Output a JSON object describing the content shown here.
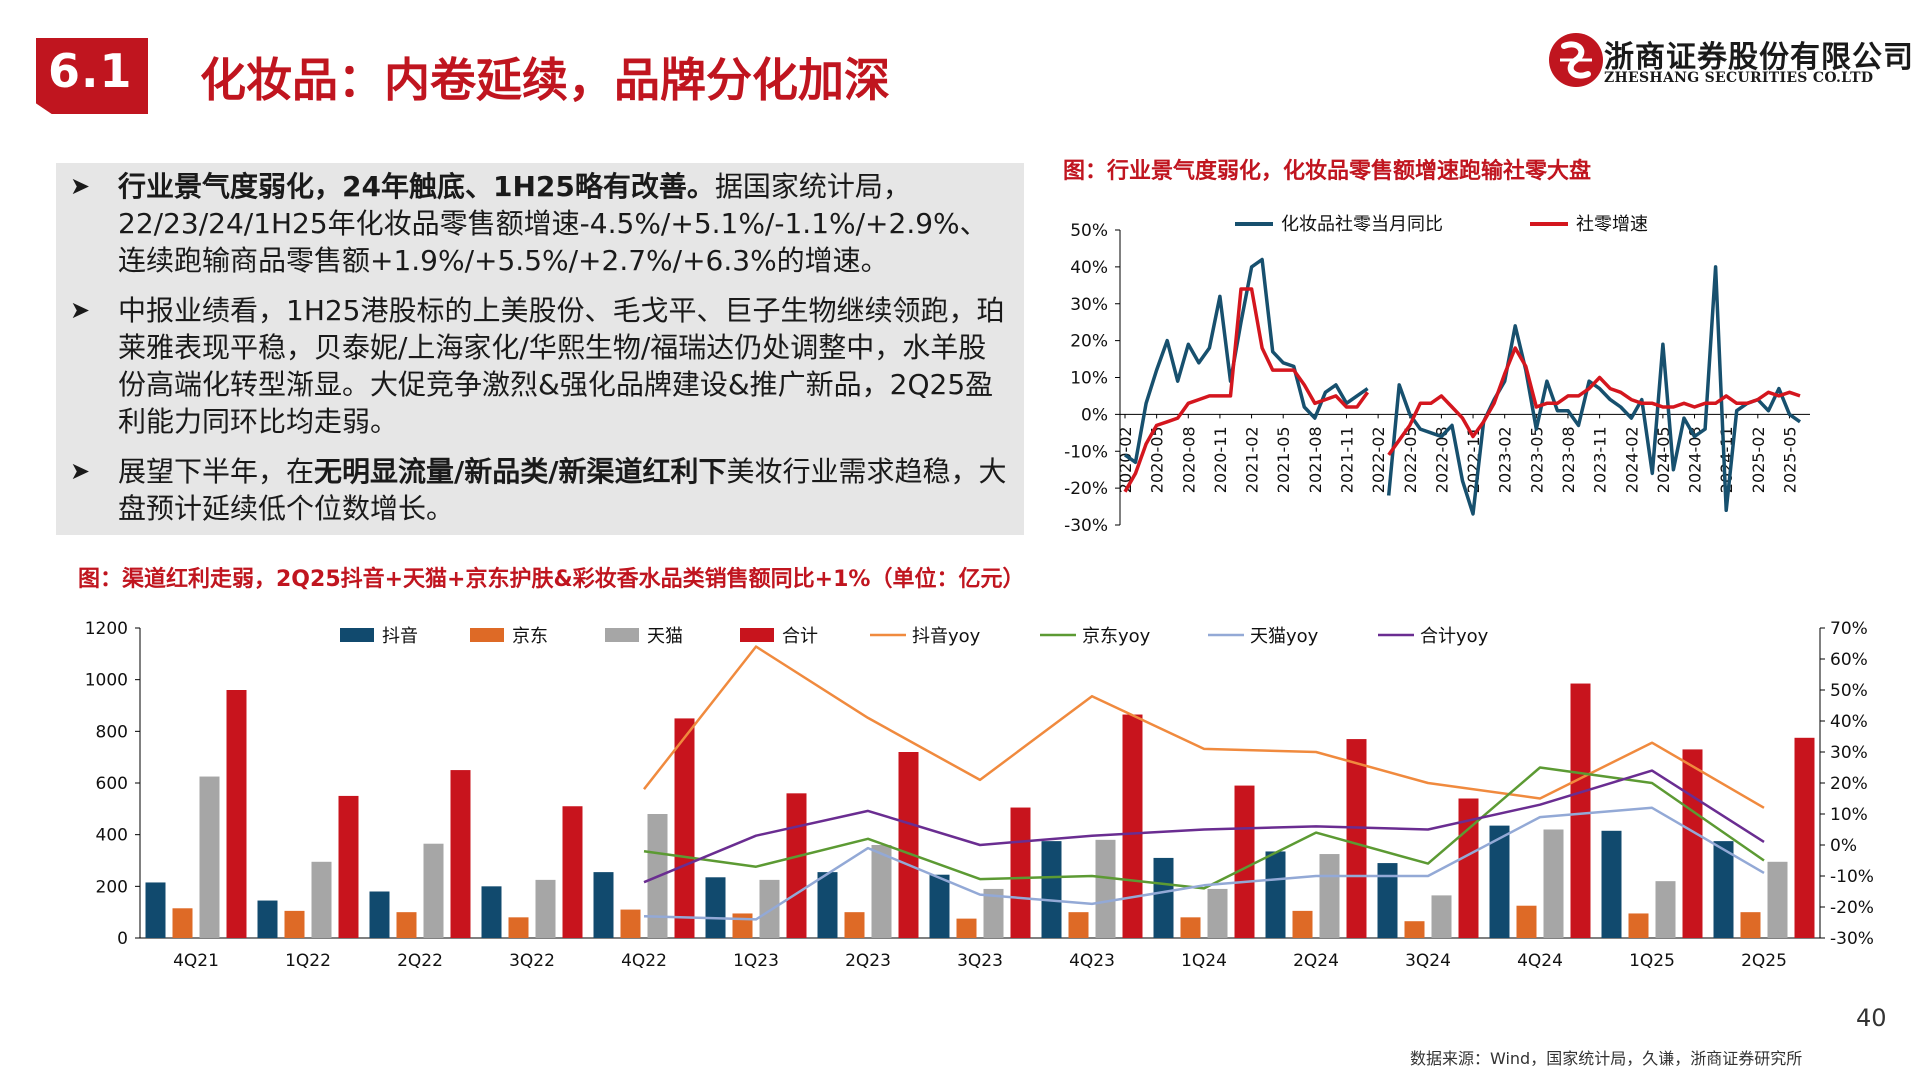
{
  "header": {
    "section_number": "6.1",
    "title": "化妆品：内卷延续，品牌分化加深",
    "logo_cn": "浙商证券股份有限公司",
    "logo_en": "ZHESHANG SECURITIES CO.LTD"
  },
  "bullets": [
    {
      "bold": "行业景气度弱化，24年触底、1H25略有改善。",
      "text": "据国家统计局，22/23/24/1H25年化妆品零售额增速-4.5%/+5.1%/-1.1%/+2.9%、连续跑输商品零售额+1.9%/+5.5%/+2.7%/+6.3%的增速。"
    },
    {
      "bold": "",
      "text": "中报业绩看，1H25港股标的上美股份、毛戈平、巨子生物继续领跑，珀莱雅表现平稳，贝泰妮/上海家化/华熙生物/福瑞达仍处调整中，水羊股份高端化转型渐显。大促竞争激烈&强化品牌建设&推广新品，2Q25盈利能力同环比均走弱。"
    },
    {
      "pre": "展望下半年，在",
      "bold": "无明显流量/新品类/新渠道红利下",
      "text": "美妆行业需求趋稳，大盘预计延续低个位数增长。"
    }
  ],
  "figure1_title": "图：行业景气度弱化，化妆品零售额增速跑输社零大盘",
  "figure2_title": "图：渠道红利走弱，2Q25抖音+天猫+京东护肤&彩妆香水品类销售额同比+1%（单位：亿元）",
  "page_number": "40",
  "source": "数据来源：Wind，国家统计局，久谦，浙商证券研究所",
  "colors": {
    "brand_red": "#c0151f",
    "cosmetics_line": "#17506e",
    "retail_line": "#d4161e",
    "douyin": "#114a6e",
    "jd": "#de6a26",
    "tmall": "#a6a6a6",
    "total": "#c8141d",
    "douyin_yoy": "#f08a3e",
    "jd_yoy": "#5c9a33",
    "tmall_yoy": "#93a9d6",
    "total_yoy": "#6a2d91"
  },
  "chart_data": [
    {
      "type": "line",
      "title": "图：行业景气度弱化，化妆品零售额增速跑输社零大盘",
      "x": [
        "2020-02",
        "2020-03",
        "2020-04",
        "2020-05",
        "2020-06",
        "2020-07",
        "2020-08",
        "2020-09",
        "2020-10",
        "2020-11",
        "2020-12",
        "2021-01",
        "2021-02",
        "2021-03",
        "2021-04",
        "2021-05",
        "2021-06",
        "2021-07",
        "2021-08",
        "2021-09",
        "2021-10",
        "2021-11",
        "2021-12",
        "2022-01",
        "2022-02",
        "2022-03",
        "2022-04",
        "2022-05",
        "2022-06",
        "2022-07",
        "2022-08",
        "2022-09",
        "2022-10",
        "2022-11",
        "2022-12",
        "2023-01",
        "2023-02",
        "2023-03",
        "2023-04",
        "2023-05",
        "2023-06",
        "2023-07",
        "2023-08",
        "2023-09",
        "2023-10",
        "2023-11",
        "2023-12",
        "2024-01",
        "2024-02",
        "2024-03",
        "2024-04",
        "2024-05",
        "2024-06",
        "2024-07",
        "2024-08",
        "2024-09",
        "2024-10",
        "2024-11",
        "2024-12",
        "2025-01",
        "2025-02",
        "2025-03",
        "2025-04",
        "2025-05",
        "2025-06"
      ],
      "x_tick_labels": [
        "2020-02",
        "2020-05",
        "2020-08",
        "2020-11",
        "2021-02",
        "2021-05",
        "2021-08",
        "2021-11",
        "2022-02",
        "2022-05",
        "2022-08",
        "2022-11",
        "2023-02",
        "2023-05",
        "2023-08",
        "2023-11",
        "2024-02",
        "2024-05",
        "2024-08",
        "2024-11",
        "2025-02",
        "2025-05"
      ],
      "series": [
        {
          "name": "化妆品社零当月同比",
          "values": [
            -11,
            -13,
            3,
            12,
            20,
            9,
            19,
            14,
            18,
            32,
            9,
            25,
            40,
            42,
            17,
            14,
            13,
            2,
            -1,
            6,
            8,
            3,
            5,
            7,
            null,
            -22,
            8,
            0,
            -4,
            -5,
            -6,
            -3,
            -18,
            -27,
            -2,
            4,
            9,
            24,
            12,
            -4,
            9,
            1,
            1,
            -3,
            9,
            7,
            4,
            2,
            -1,
            4,
            -16,
            19,
            -15,
            -1,
            -6,
            -4,
            40,
            -26,
            1,
            3,
            4,
            1,
            7,
            0,
            -2
          ]
        },
        {
          "name": "社零增速",
          "values": [
            -21,
            -16,
            -8,
            -3,
            -2,
            -1,
            3,
            4,
            5,
            5,
            5,
            34,
            34,
            18,
            12,
            12,
            12,
            8,
            3,
            4,
            5,
            2,
            2,
            6,
            null,
            -11,
            -7,
            -3,
            3,
            3,
            5,
            2,
            -1,
            -6,
            -2,
            3,
            11,
            18,
            13,
            2,
            3,
            3,
            5,
            5,
            7,
            10,
            7,
            6,
            4,
            3,
            3,
            2,
            2,
            3,
            2,
            3,
            3,
            5,
            3,
            3,
            4,
            6,
            5,
            6,
            5
          ]
        }
      ],
      "ylim": [
        -30,
        50
      ],
      "y_ticks": [
        "-30%",
        "-20%",
        "-10%",
        "0%",
        "10%",
        "20%",
        "30%",
        "40%",
        "50%"
      ],
      "legend": "top"
    },
    {
      "type": "bar",
      "title": "图：渠道红利走弱，2Q25抖音+天猫+京东护肤&彩妆香水品类销售额同比+1%（单位：亿元）",
      "categories": [
        "4Q21",
        "1Q22",
        "2Q22",
        "3Q22",
        "4Q22",
        "1Q23",
        "2Q23",
        "3Q23",
        "4Q23",
        "1Q24",
        "2Q24",
        "3Q24",
        "4Q24",
        "1Q25",
        "2Q25"
      ],
      "series": [
        {
          "name": "抖音",
          "type": "bar",
          "values": [
            215,
            145,
            180,
            200,
            255,
            235,
            255,
            245,
            375,
            310,
            335,
            290,
            435,
            415,
            375
          ]
        },
        {
          "name": "京东",
          "type": "bar",
          "values": [
            115,
            105,
            100,
            80,
            110,
            95,
            100,
            75,
            100,
            80,
            105,
            65,
            125,
            95,
            100
          ]
        },
        {
          "name": "天猫",
          "type": "bar",
          "values": [
            625,
            295,
            365,
            225,
            480,
            225,
            360,
            190,
            380,
            190,
            325,
            165,
            420,
            220,
            295
          ]
        },
        {
          "name": "合计",
          "type": "bar",
          "values": [
            960,
            550,
            650,
            510,
            850,
            560,
            720,
            505,
            865,
            590,
            770,
            540,
            985,
            730,
            775
          ]
        },
        {
          "name": "抖音yoy",
          "type": "line",
          "axis": "right",
          "values": [
            null,
            null,
            null,
            null,
            18,
            64,
            41,
            21,
            48,
            31,
            30,
            20,
            15,
            33,
            12
          ]
        },
        {
          "name": "京东yoy",
          "type": "line",
          "axis": "right",
          "values": [
            null,
            null,
            null,
            null,
            -2,
            -7,
            2,
            -11,
            -10,
            -14,
            4,
            -6,
            25,
            20,
            -5
          ]
        },
        {
          "name": "天猫yoy",
          "type": "line",
          "axis": "right",
          "values": [
            null,
            null,
            null,
            null,
            -23,
            -24,
            -1,
            -16,
            -19,
            -13,
            -10,
            -10,
            9,
            12,
            -9
          ]
        },
        {
          "name": "合计yoy",
          "type": "line",
          "axis": "right",
          "values": [
            null,
            null,
            null,
            null,
            -12,
            3,
            11,
            0,
            3,
            5,
            6,
            5,
            13,
            24,
            1
          ]
        }
      ],
      "ylim": [
        0,
        1200
      ],
      "y_ticks": [
        "0",
        "200",
        "400",
        "600",
        "800",
        "1000",
        "1200"
      ],
      "y2lim": [
        -30,
        70
      ],
      "y2_ticks": [
        "-30%",
        "-20%",
        "-10%",
        "0%",
        "10%",
        "20%",
        "30%",
        "40%",
        "50%",
        "60%",
        "70%"
      ],
      "legend": "top"
    }
  ]
}
